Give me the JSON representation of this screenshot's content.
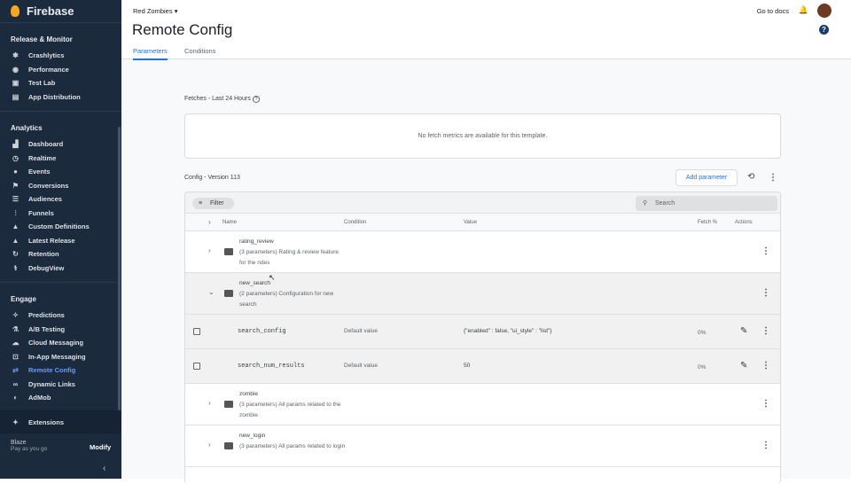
{
  "sidebar": {
    "brand": "Firebase",
    "sections": [
      {
        "title": "Release & Monitor",
        "items": [
          {
            "label": "Crashlytics",
            "icon": "crashlytics-icon"
          },
          {
            "label": "Performance",
            "icon": "performance-icon"
          },
          {
            "label": "Test Lab",
            "icon": "test-lab-icon"
          },
          {
            "label": "App Distribution",
            "icon": "app-distribution-icon"
          }
        ]
      },
      {
        "title": "Analytics",
        "items": [
          {
            "label": "Dashboard",
            "icon": "bar-chart-icon"
          },
          {
            "label": "Realtime",
            "icon": "clock-icon"
          },
          {
            "label": "Events",
            "icon": "events-icon"
          },
          {
            "label": "Conversions",
            "icon": "flag-icon"
          },
          {
            "label": "Audiences",
            "icon": "audiences-icon"
          },
          {
            "label": "Funnels",
            "icon": "funnel-icon"
          },
          {
            "label": "Custom Definitions",
            "icon": "shapes-icon"
          },
          {
            "label": "Latest Release",
            "icon": "release-icon"
          },
          {
            "label": "Retention",
            "icon": "retention-icon"
          },
          {
            "label": "DebugView",
            "icon": "debug-icon"
          }
        ]
      },
      {
        "title": "Engage",
        "items": [
          {
            "label": "Predictions",
            "icon": "wand-icon"
          },
          {
            "label": "A/B Testing",
            "icon": "flask-icon"
          },
          {
            "label": "Cloud Messaging",
            "icon": "cloud-icon"
          },
          {
            "label": "In-App Messaging",
            "icon": "in-app-icon"
          },
          {
            "label": "Remote Config",
            "icon": "remote-config-icon",
            "active": true
          },
          {
            "label": "Dynamic Links",
            "icon": "link-icon"
          },
          {
            "label": "AdMob",
            "icon": "admob-icon"
          }
        ]
      }
    ],
    "extensions": "Extensions",
    "plan": "Blaze",
    "plan_sub": "Pay as you go",
    "modify": "Modify"
  },
  "header": {
    "project": "Red Zombies",
    "title": "Remote Config",
    "tabs": [
      "Parameters",
      "Conditions"
    ],
    "docs": "Go to docs"
  },
  "fetches": {
    "label": "Fetches - Last 24 Hours",
    "empty": "No fetch metrics are available for this template."
  },
  "config": {
    "version": "Config - Version 113",
    "add_parameter": "Add parameter",
    "filter": "Filter",
    "search_placeholder": "Search",
    "columns": {
      "name": "Name",
      "condition": "Condition",
      "value": "Value",
      "fetch": "Fetch %",
      "actions": "Actions"
    },
    "groups": [
      {
        "name": "rating_review",
        "desc": "(3 parameters) Rating & review feature for the rides",
        "expanded": false
      },
      {
        "name": "new_search",
        "desc": "(2 parameters) Configuration for new search",
        "expanded": true,
        "params": [
          {
            "name": "search_config",
            "condition": "Default value",
            "value": "{\"enabled\" : false, \"ui_style\" : \"list\"}",
            "fetch": "0%"
          },
          {
            "name": "search_num_results",
            "condition": "Default value",
            "value": "50",
            "fetch": "0%"
          }
        ]
      },
      {
        "name": "zombie",
        "desc": "(3 parameters) All params related to the zombie",
        "expanded": false
      },
      {
        "name": "new_login",
        "desc": "(3 parameters) All params related to login",
        "expanded": false
      }
    ]
  }
}
